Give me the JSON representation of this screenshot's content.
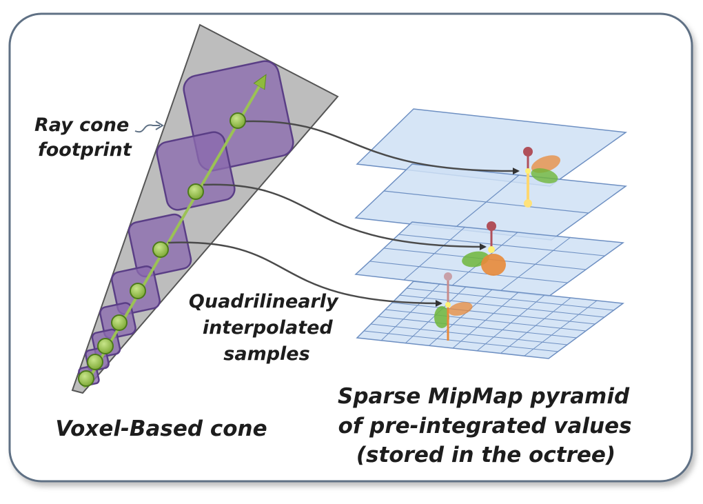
{
  "labels": {
    "ray_cone_footprint": [
      "Ray cone",
      "footprint"
    ],
    "samples": [
      "Quadrilinearly",
      "interpolated",
      "samples"
    ],
    "voxel_cone": "Voxel-Based cone",
    "mipmap": [
      "Sparse MipMap pyramid",
      "of pre-integrated values",
      "(stored in the octree)"
    ]
  },
  "colors": {
    "frame_border": "#5e7084",
    "cone_fill": "#bdbdbd",
    "voxel_fill": "#8a6aae",
    "voxel_stroke": "#5a3e86",
    "ray_axis": "#9bc255",
    "sample_fill": "#8fba3e",
    "sample_stroke": "#4c7a1a",
    "layer_fill": "#cfe0f5",
    "layer_stroke": "#6d8fc2",
    "arrow": "#4a4a4a",
    "lobe_orange": "#e8893a",
    "lobe_green": "#6fb63a",
    "lobe_red": "#b0505a",
    "lobe_yellow": "#ffe27a"
  },
  "mipmap_levels": [
    1,
    2,
    4,
    8
  ],
  "sample_count": 8
}
